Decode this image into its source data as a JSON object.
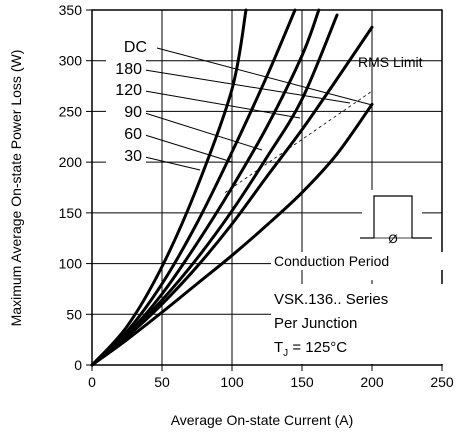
{
  "chart_data": {
    "type": "line",
    "ylabel": "Maximum Average On-state Power Loss (W)",
    "xlabel": "Average On-state Current (A)",
    "xlim": [
      0,
      250
    ],
    "ylim": [
      0,
      350
    ],
    "xticks": [
      0,
      50,
      100,
      150,
      200,
      250
    ],
    "yticks": [
      0,
      50,
      100,
      150,
      200,
      250,
      300,
      350
    ],
    "grid": true,
    "series": [
      {
        "name": "30",
        "x": [
          0,
          25,
          50,
          75,
          100,
          110
        ],
        "y": [
          0,
          38,
          97,
          175,
          272,
          350
        ]
      },
      {
        "name": "60",
        "x": [
          0,
          25,
          50,
          75,
          100,
          125,
          145
        ],
        "y": [
          0,
          33,
          80,
          140,
          210,
          285,
          350
        ]
      },
      {
        "name": "90",
        "x": [
          0,
          25,
          50,
          75,
          100,
          125,
          150,
          162
        ],
        "y": [
          0,
          30,
          70,
          120,
          175,
          235,
          305,
          350
        ]
      },
      {
        "name": "120",
        "x": [
          0,
          25,
          50,
          75,
          100,
          125,
          150,
          175
        ],
        "y": [
          0,
          29,
          64,
          105,
          152,
          205,
          262,
          345
        ]
      },
      {
        "name": "180",
        "x": [
          0,
          25,
          50,
          75,
          100,
          125,
          150,
          175,
          200
        ],
        "y": [
          0,
          28,
          60,
          97,
          139,
          186,
          232,
          282,
          333
        ]
      },
      {
        "name": "DC",
        "x": [
          0,
          25,
          50,
          75,
          100,
          125,
          150,
          175,
          200
        ],
        "y": [
          0,
          25,
          52,
          80,
          108,
          138,
          170,
          208,
          257
        ]
      }
    ],
    "rms_limit": {
      "label": "RMS Limit",
      "x": [
        95,
        200
      ],
      "y": [
        170,
        270
      ]
    },
    "legend_title": "DC",
    "annotations": {
      "conduction": "Conduction Period",
      "series_line1": "VSK.136.. Series",
      "series_line2": "Per Junction",
      "temp_prefix": "T",
      "temp_sub": "J",
      "temp_value": " = 125°C",
      "phi": "Ø"
    }
  }
}
